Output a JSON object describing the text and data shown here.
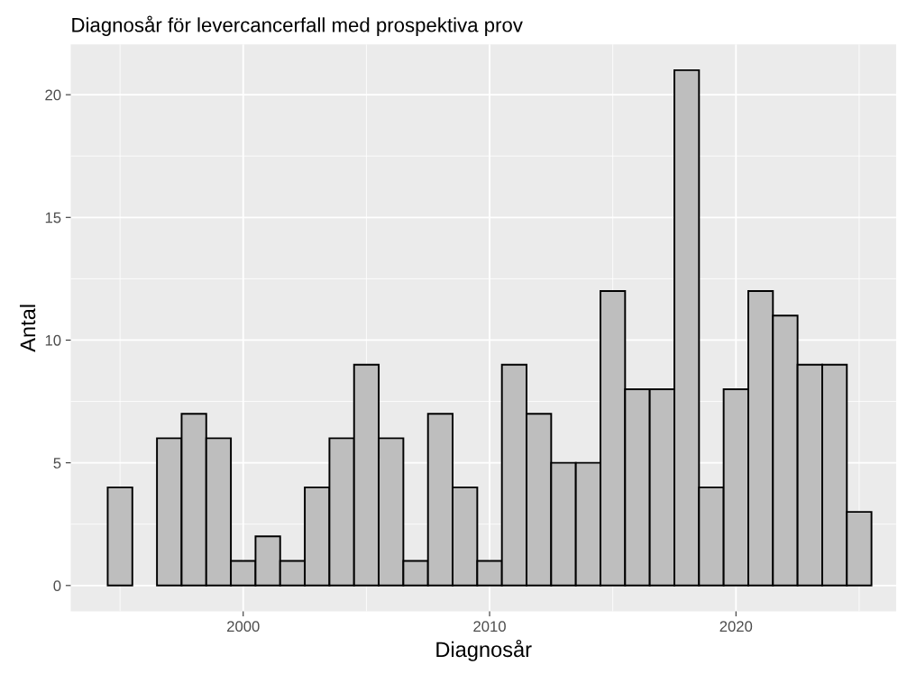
{
  "chart_data": {
    "type": "histogram",
    "title": "Diagnosår för levercancerfall med prospektiva prov",
    "xlabel": "Diagnosår",
    "ylabel": "Antal",
    "bins": [
      1994.5,
      1995.5,
      1996.5,
      1997.5,
      1998.5,
      1999.5,
      2000.5,
      2001.5,
      2002.5,
      2003.5,
      2004.5,
      2005.5,
      2006.5,
      2007.5,
      2008.5,
      2009.5,
      2010.5,
      2011.5,
      2012.5,
      2013.5,
      2014.5,
      2015.5,
      2016.5,
      2017.5,
      2018.5,
      2019.5,
      2020.5,
      2021.5,
      2022.5,
      2023.5,
      2024.5,
      2025.5
    ],
    "values": [
      4,
      0,
      6,
      7,
      6,
      1,
      2,
      1,
      4,
      6,
      9,
      6,
      1,
      7,
      4,
      1,
      9,
      7,
      5,
      5,
      12,
      8,
      8,
      21,
      4,
      8,
      12,
      11,
      9,
      9,
      3
    ],
    "color": "#bebebe",
    "xlim": [
      1993,
      2026.5
    ],
    "xticks": [
      2000,
      2010,
      2020
    ],
    "ylim": [
      -1.05,
      22.05
    ],
    "yticks": [
      0,
      5,
      10,
      15,
      20
    ],
    "grid": true,
    "legend": false
  }
}
